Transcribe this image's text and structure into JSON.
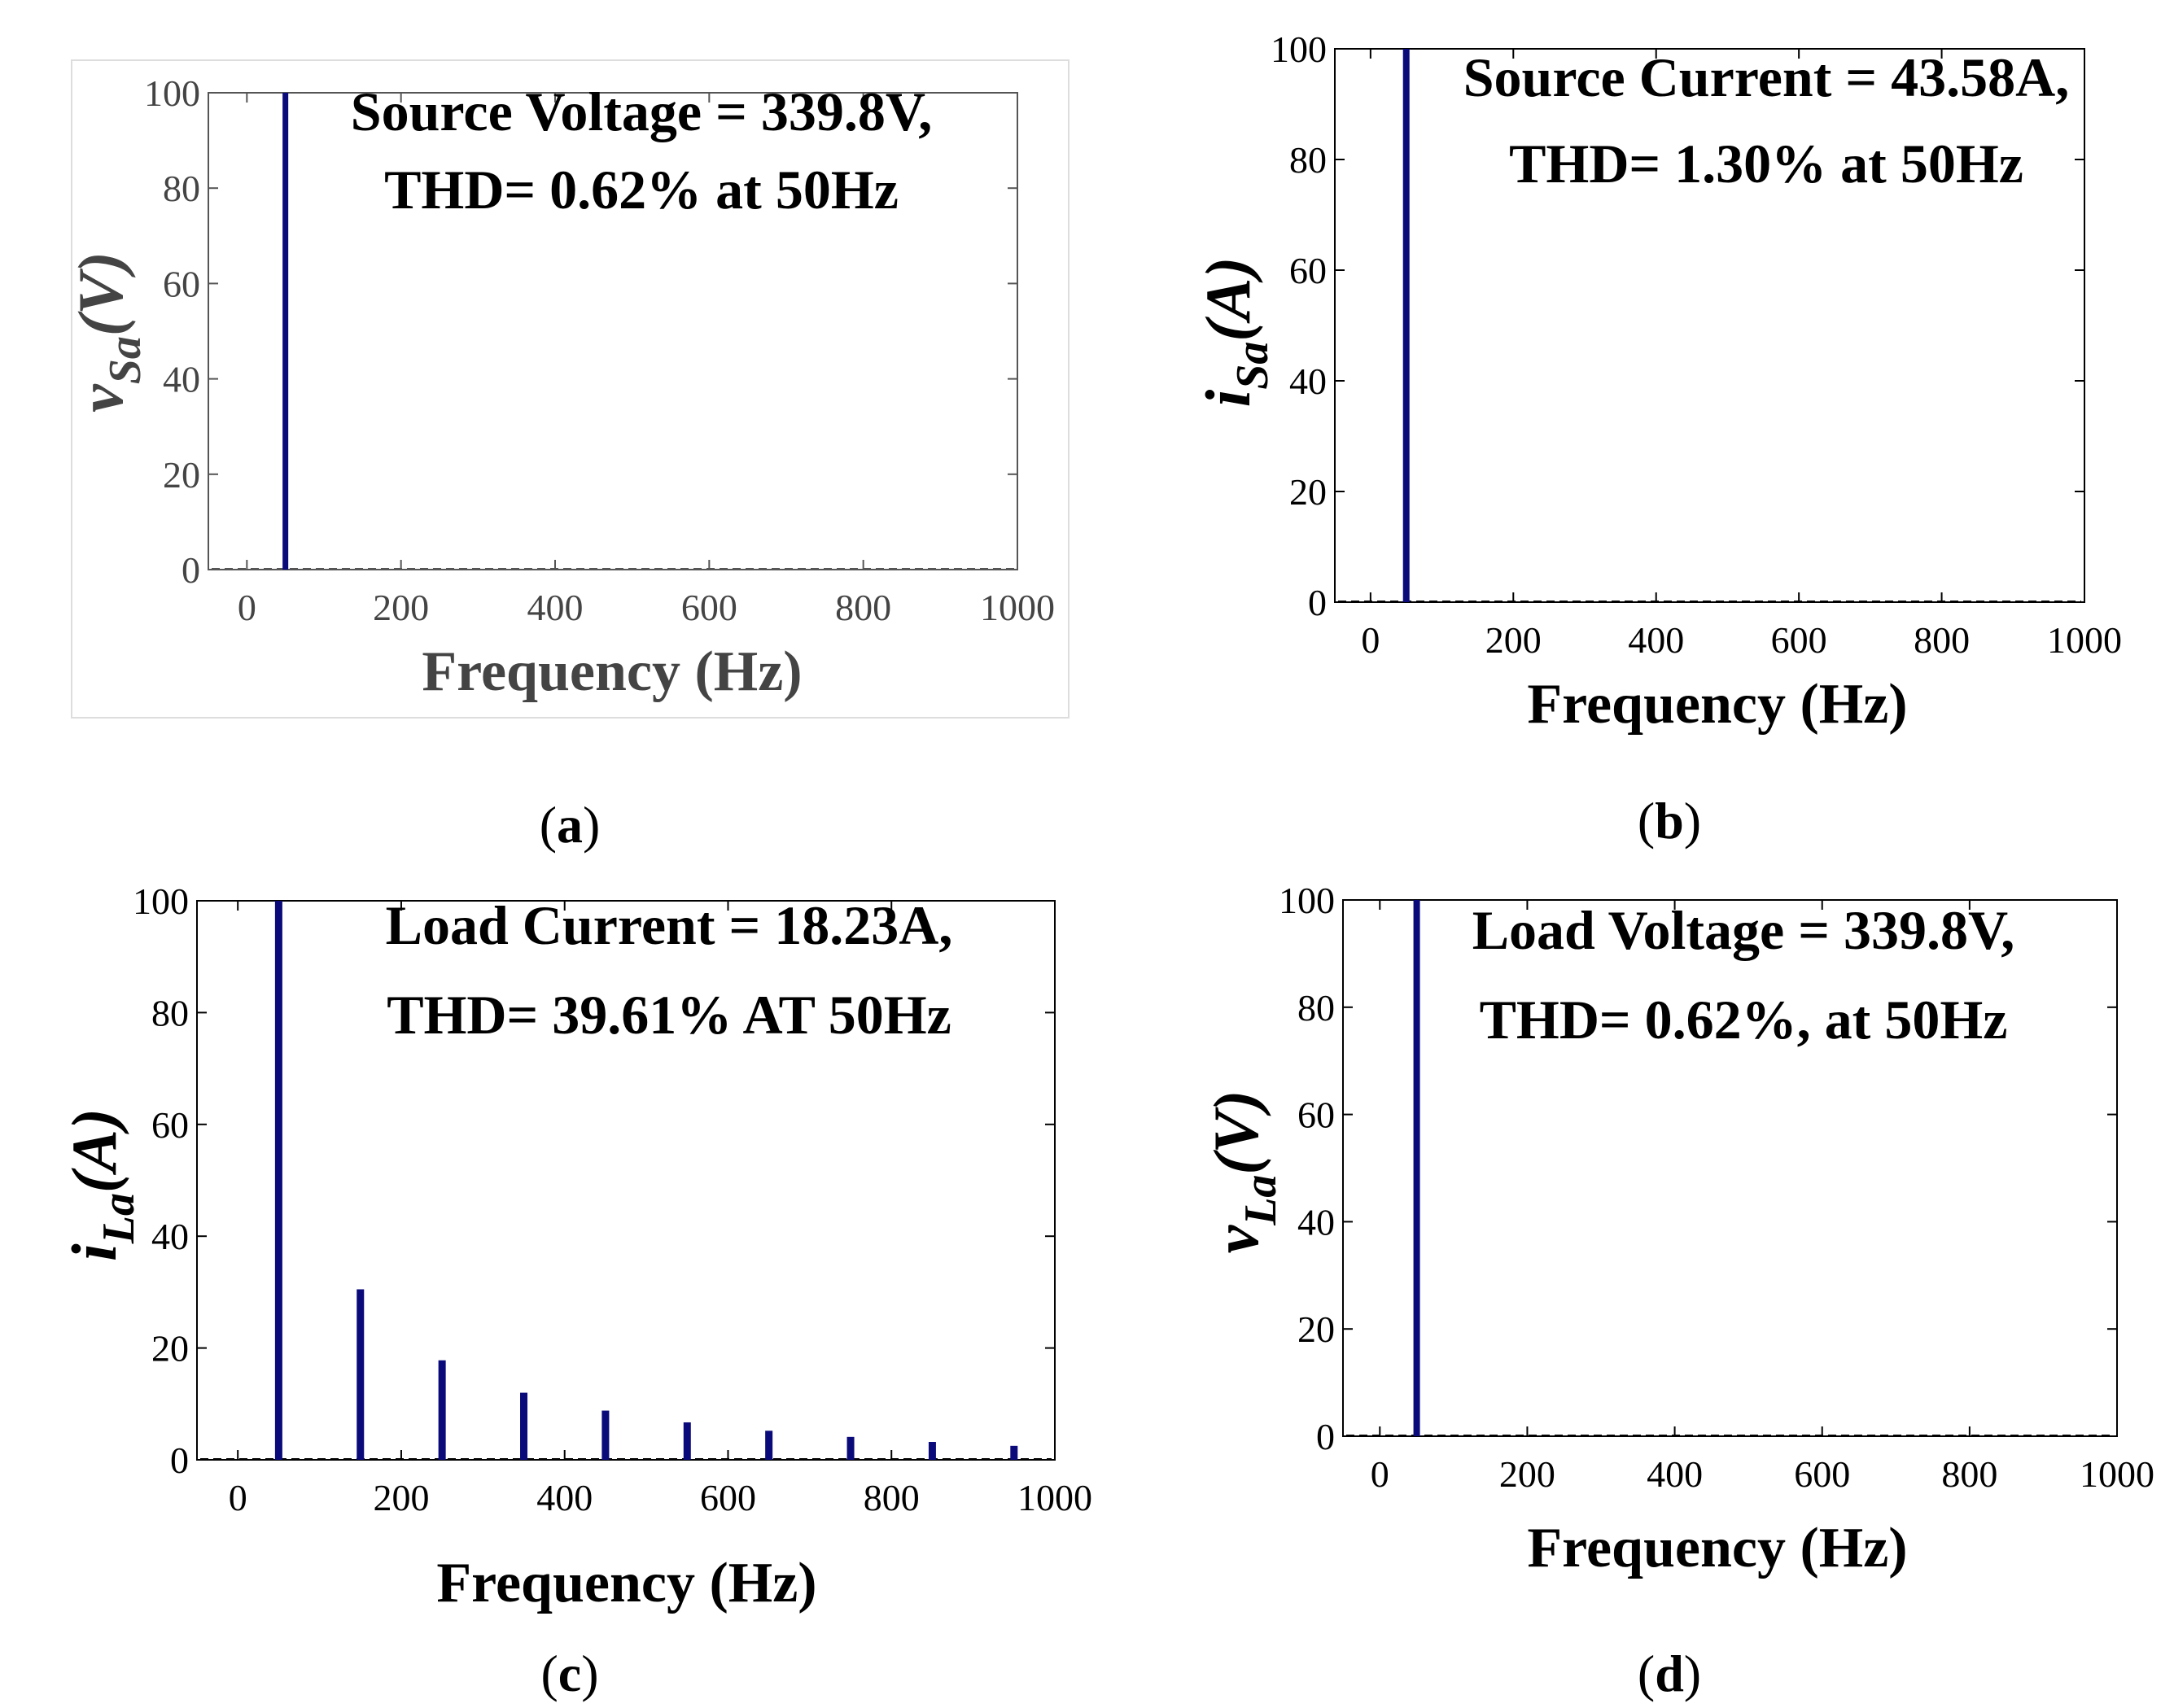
{
  "chart_data": [
    {
      "id": "a",
      "type": "bar",
      "caption": "(a)",
      "caption_letter": "a",
      "xlabel": "Frequency (Hz)",
      "ylabel_main": "v",
      "ylabel_sub": "Sa",
      "ylabel_tail": "(V)",
      "xlim": [
        -50,
        1000
      ],
      "ylim": [
        0,
        100
      ],
      "xticks": [
        0,
        200,
        400,
        600,
        800,
        1000
      ],
      "yticks": [
        0,
        20,
        40,
        60,
        80,
        100
      ],
      "annotation": [
        "Source Voltage = 339.8V,",
        "THD= 0.62% at 50Hz"
      ],
      "grid": false,
      "x": [
        50
      ],
      "values": [
        100
      ]
    },
    {
      "id": "b",
      "type": "bar",
      "caption": "(b)",
      "caption_letter": "b",
      "xlabel": "Frequency (Hz)",
      "ylabel_main": "i",
      "ylabel_sub": "Sa",
      "ylabel_tail": "(A)",
      "xlim": [
        -50,
        1000
      ],
      "ylim": [
        0,
        100
      ],
      "xticks": [
        0,
        200,
        400,
        600,
        800,
        1000
      ],
      "yticks": [
        0,
        20,
        40,
        60,
        80,
        100
      ],
      "annotation": [
        "Source Current = 43.58A,",
        "THD= 1.30% at 50Hz"
      ],
      "grid": false,
      "x": [
        50
      ],
      "values": [
        100
      ]
    },
    {
      "id": "c",
      "type": "bar",
      "caption": "(c)",
      "caption_letter": "c",
      "xlabel": "Frequency (Hz)",
      "ylabel_main": "i",
      "ylabel_sub": "La",
      "ylabel_tail": "(A)",
      "xlim": [
        -50,
        1000
      ],
      "ylim": [
        0,
        100
      ],
      "xticks": [
        0,
        200,
        400,
        600,
        800,
        1000
      ],
      "yticks": [
        0,
        20,
        40,
        60,
        80,
        100
      ],
      "annotation": [
        "Load Current = 18.23A,",
        "THD= 39.61% AT 50Hz"
      ],
      "grid": false,
      "x": [
        50,
        150,
        250,
        350,
        450,
        550,
        650,
        750,
        850,
        950
      ],
      "values": [
        100,
        30.5,
        17.8,
        12.0,
        8.8,
        6.7,
        5.2,
        4.1,
        3.2,
        2.5
      ]
    },
    {
      "id": "d",
      "type": "bar",
      "caption": "(d)",
      "caption_letter": "d",
      "xlabel": "Frequency (Hz)",
      "ylabel_main": "v",
      "ylabel_sub": "La",
      "ylabel_tail": "(V)",
      "xlim": [
        -50,
        1000
      ],
      "ylim": [
        0,
        100
      ],
      "xticks": [
        0,
        200,
        400,
        600,
        800,
        1000
      ],
      "yticks": [
        0,
        20,
        40,
        60,
        80,
        100
      ],
      "annotation": [
        "Load Voltage = 339.8V,",
        "THD= 0.62%, at 50Hz"
      ],
      "grid": false,
      "x": [
        50
      ],
      "values": [
        100
      ]
    }
  ],
  "colors": {
    "bar": "#0a0a7a",
    "axis_a": "#555555",
    "axis_other": "#000000",
    "text_a": "#444444",
    "text_other": "#000000",
    "annotation": "#000000",
    "frame_light": "#dddddd"
  }
}
